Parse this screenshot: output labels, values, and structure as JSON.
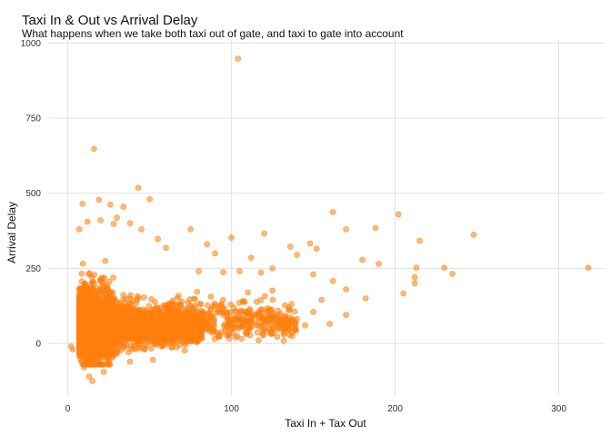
{
  "chart_data": {
    "type": "scatter",
    "title": "Taxi In & Out vs Arrival Delay",
    "subtitle": "What happens when we take both taxi out of gate, and taxi to gate into account",
    "xlabel": "Taxi In + Tax Out",
    "ylabel": "Arrival Delay",
    "xlim": [
      -12,
      328
    ],
    "ylim": [
      -175,
      1010
    ],
    "xticks": [
      0,
      100,
      200,
      300
    ],
    "yticks": [
      0,
      250,
      500,
      750,
      1000
    ],
    "grid": true,
    "point_color": "#FF7F0E",
    "point_opacity": 0.55,
    "series": [
      {
        "points": [
          [
            104,
            948
          ],
          [
            16,
            648
          ],
          [
            43,
            518
          ],
          [
            50,
            480
          ],
          [
            19,
            478
          ],
          [
            9,
            465
          ],
          [
            26,
            462
          ],
          [
            34,
            455
          ],
          [
            162,
            437
          ],
          [
            202,
            430
          ],
          [
            30,
            418
          ],
          [
            20,
            410
          ],
          [
            12,
            405
          ],
          [
            38,
            400
          ],
          [
            28,
            398
          ],
          [
            7,
            380
          ],
          [
            45,
            380
          ],
          [
            75,
            380
          ],
          [
            170,
            380
          ],
          [
            188,
            384
          ],
          [
            100,
            352
          ],
          [
            120,
            366
          ],
          [
            248,
            362
          ],
          [
            215,
            342
          ],
          [
            148,
            333
          ],
          [
            136,
            322
          ],
          [
            85,
            330
          ],
          [
            55,
            348
          ],
          [
            152,
            315
          ],
          [
            60,
            318
          ],
          [
            90,
            300
          ],
          [
            140,
            295
          ],
          [
            112,
            285
          ],
          [
            180,
            278
          ],
          [
            190,
            265
          ],
          [
            230,
            252
          ],
          [
            213,
            252
          ],
          [
            318,
            252
          ],
          [
            105,
            240
          ],
          [
            80,
            240
          ],
          [
            95,
            237
          ],
          [
            125,
            250
          ],
          [
            118,
            236
          ],
          [
            150,
            230
          ],
          [
            235,
            232
          ],
          [
            212,
            220
          ],
          [
            162,
            208
          ],
          [
            212,
            200
          ],
          [
            170,
            180
          ],
          [
            125,
            176
          ],
          [
            110,
            170
          ],
          [
            205,
            167
          ],
          [
            182,
            150
          ],
          [
            155,
            145
          ],
          [
            135,
            120
          ],
          [
            150,
            105
          ],
          [
            170,
            95
          ],
          [
            140,
            82
          ],
          [
            120,
            75
          ],
          [
            160,
            65
          ],
          [
            145,
            60
          ],
          [
            130,
            50
          ],
          [
            100,
            45
          ],
          [
            110,
            40
          ],
          [
            90,
            40
          ],
          [
            130,
            70
          ],
          [
            115,
            95
          ],
          [
            98,
            28
          ],
          [
            128,
            22
          ],
          [
            13,
            -110
          ],
          [
            15,
            -125
          ],
          [
            10,
            -80
          ],
          [
            22,
            -95
          ],
          [
            3,
            -20
          ],
          [
            2,
            -10
          ],
          [
            38,
            -60
          ],
          [
            52,
            -55
          ]
        ]
      }
    ]
  }
}
